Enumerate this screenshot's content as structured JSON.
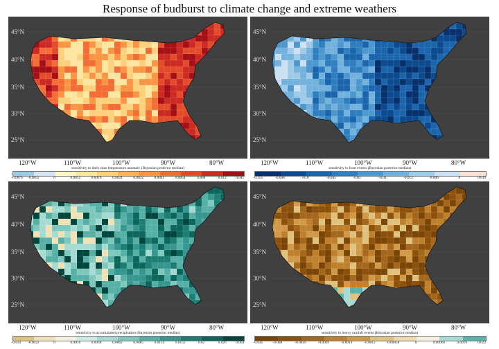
{
  "title": "Response of budburst to climate change and extreme weathers",
  "lat_labels": [
    "45°N",
    "40°N",
    "35°N",
    "30°N",
    "25°N"
  ],
  "lon_labels": [
    "120°W",
    "110°W",
    "100°W",
    "90°W",
    "80°W"
  ],
  "colors": {
    "background": "#404040",
    "map_outline": "#1a1a1a"
  },
  "panels": [
    {
      "id": "tmax",
      "colorbar_title": "sensitivity to daily max temperature anomaly (Bayesian posterior median)",
      "ticks": [
        "-0.0076",
        "-0.0055",
        "0",
        "0.0012",
        "0.0019",
        "0.0024",
        "0.0032",
        "0.0041",
        "0.0054",
        "0.008",
        "0.012",
        "0.041"
      ],
      "colors": [
        "#9ecae1",
        "#d6e4ef",
        "#fff5c8",
        "#fde6a0",
        "#fdd07c",
        "#fdb35a",
        "#fb9443",
        "#f46d35",
        "#e44b2a",
        "#cc2a22",
        "#a50f15"
      ],
      "map_palette": [
        "#fdd07c",
        "#fde6a0",
        "#fb9443",
        "#f46d35",
        "#e44b2a",
        "#cc2a22",
        "#a50f15",
        "#fdb35a"
      ]
    },
    {
      "id": "frost",
      "colorbar_title": "sensitivity to frost events (Bayesian posterior median)",
      "ticks": [
        "-0.155",
        "-0.098",
        "-0.07",
        "-0.045",
        "-0.03",
        "-0.02",
        "-0.012",
        "-0.006",
        "0",
        "0.019"
      ],
      "colors": [
        "#08306b",
        "#0b4a8e",
        "#1a65ac",
        "#2f7fc0",
        "#4d99cf",
        "#73b2dd",
        "#a0cbe8",
        "#cde0f1",
        "#f7e1d3"
      ],
      "map_palette": [
        "#08306b",
        "#0b4a8e",
        "#1a65ac",
        "#2f7fc0",
        "#4d99cf",
        "#73b2dd",
        "#a0cbe8",
        "#cde0f1"
      ]
    },
    {
      "id": "precip",
      "colorbar_title": "sensitivity to accumulated precipitation (Bayesian posterior median)",
      "ticks": [
        "-0.033",
        "-0.0022",
        "0",
        "0.0018",
        "0.0038",
        "0.0062",
        "0.0085",
        "0.0114",
        "0.0155",
        "0.02",
        "0.026",
        "0.064"
      ],
      "colors": [
        "#dfc27d",
        "#f0e2b6",
        "#f5f1e2",
        "#cdeae5",
        "#a6dbd2",
        "#7fc8bd",
        "#56b0a5",
        "#35978f",
        "#1d7f74",
        "#0c665c",
        "#01463d"
      ],
      "map_palette": [
        "#35978f",
        "#1d7f74",
        "#0c665c",
        "#56b0a5",
        "#7fc8bd",
        "#a6dbd2",
        "#01463d",
        "#f0e2b6"
      ]
    },
    {
      "id": "rain",
      "colorbar_title": "sensitivity to heavy rainfall events (Bayesian posterior median)",
      "ticks": [
        "-0.045",
        "-0.008",
        "-0.0049",
        "-0.0029",
        "-0.0019",
        "-0.0012",
        "-0.00058",
        "0",
        "0.00066",
        "0.0019",
        "0.022"
      ],
      "colors": [
        "#7a4506",
        "#8c510a",
        "#a4671b",
        "#bf812d",
        "#d19a48",
        "#dfc27d",
        "#ecdcae",
        "#f5f1e2",
        "#a6dbd2",
        "#5ab4ac"
      ],
      "map_palette": [
        "#8c510a",
        "#a4671b",
        "#bf812d",
        "#7a4506",
        "#d19a48",
        "#dfc27d",
        "#a6dbd2",
        "#5ab4ac"
      ]
    }
  ]
}
